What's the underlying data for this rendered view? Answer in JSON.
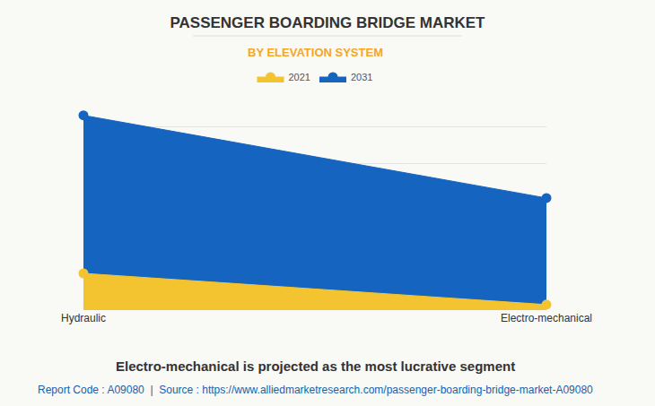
{
  "chart_data": {
    "type": "area",
    "title": "PASSENGER BOARDING BRIDGE MARKET",
    "subtitle": "BY ELEVATION SYSTEM",
    "categories": [
      "Hydraulic",
      "Electro-mechanical"
    ],
    "series": [
      {
        "name": "2021",
        "color": "#f4c430",
        "values": [
          1.0,
          0.15
        ]
      },
      {
        "name": "2031",
        "color": "#1565c0",
        "values": [
          5.3,
          3.05
        ]
      }
    ],
    "ylim": [
      0,
      6
    ],
    "yticks": [
      0,
      1,
      2,
      3,
      4,
      5,
      6
    ],
    "grid": true,
    "tick_labels": "x",
    "legend": "top",
    "marker": "circle",
    "annotations": [
      "Electro-mechanical is projected as the most lucrative segment",
      "Report Code : A09080  |  Source : https://www.alliedmarketresearch.com/passenger-boarding-bridge-market-A09080"
    ]
  }
}
